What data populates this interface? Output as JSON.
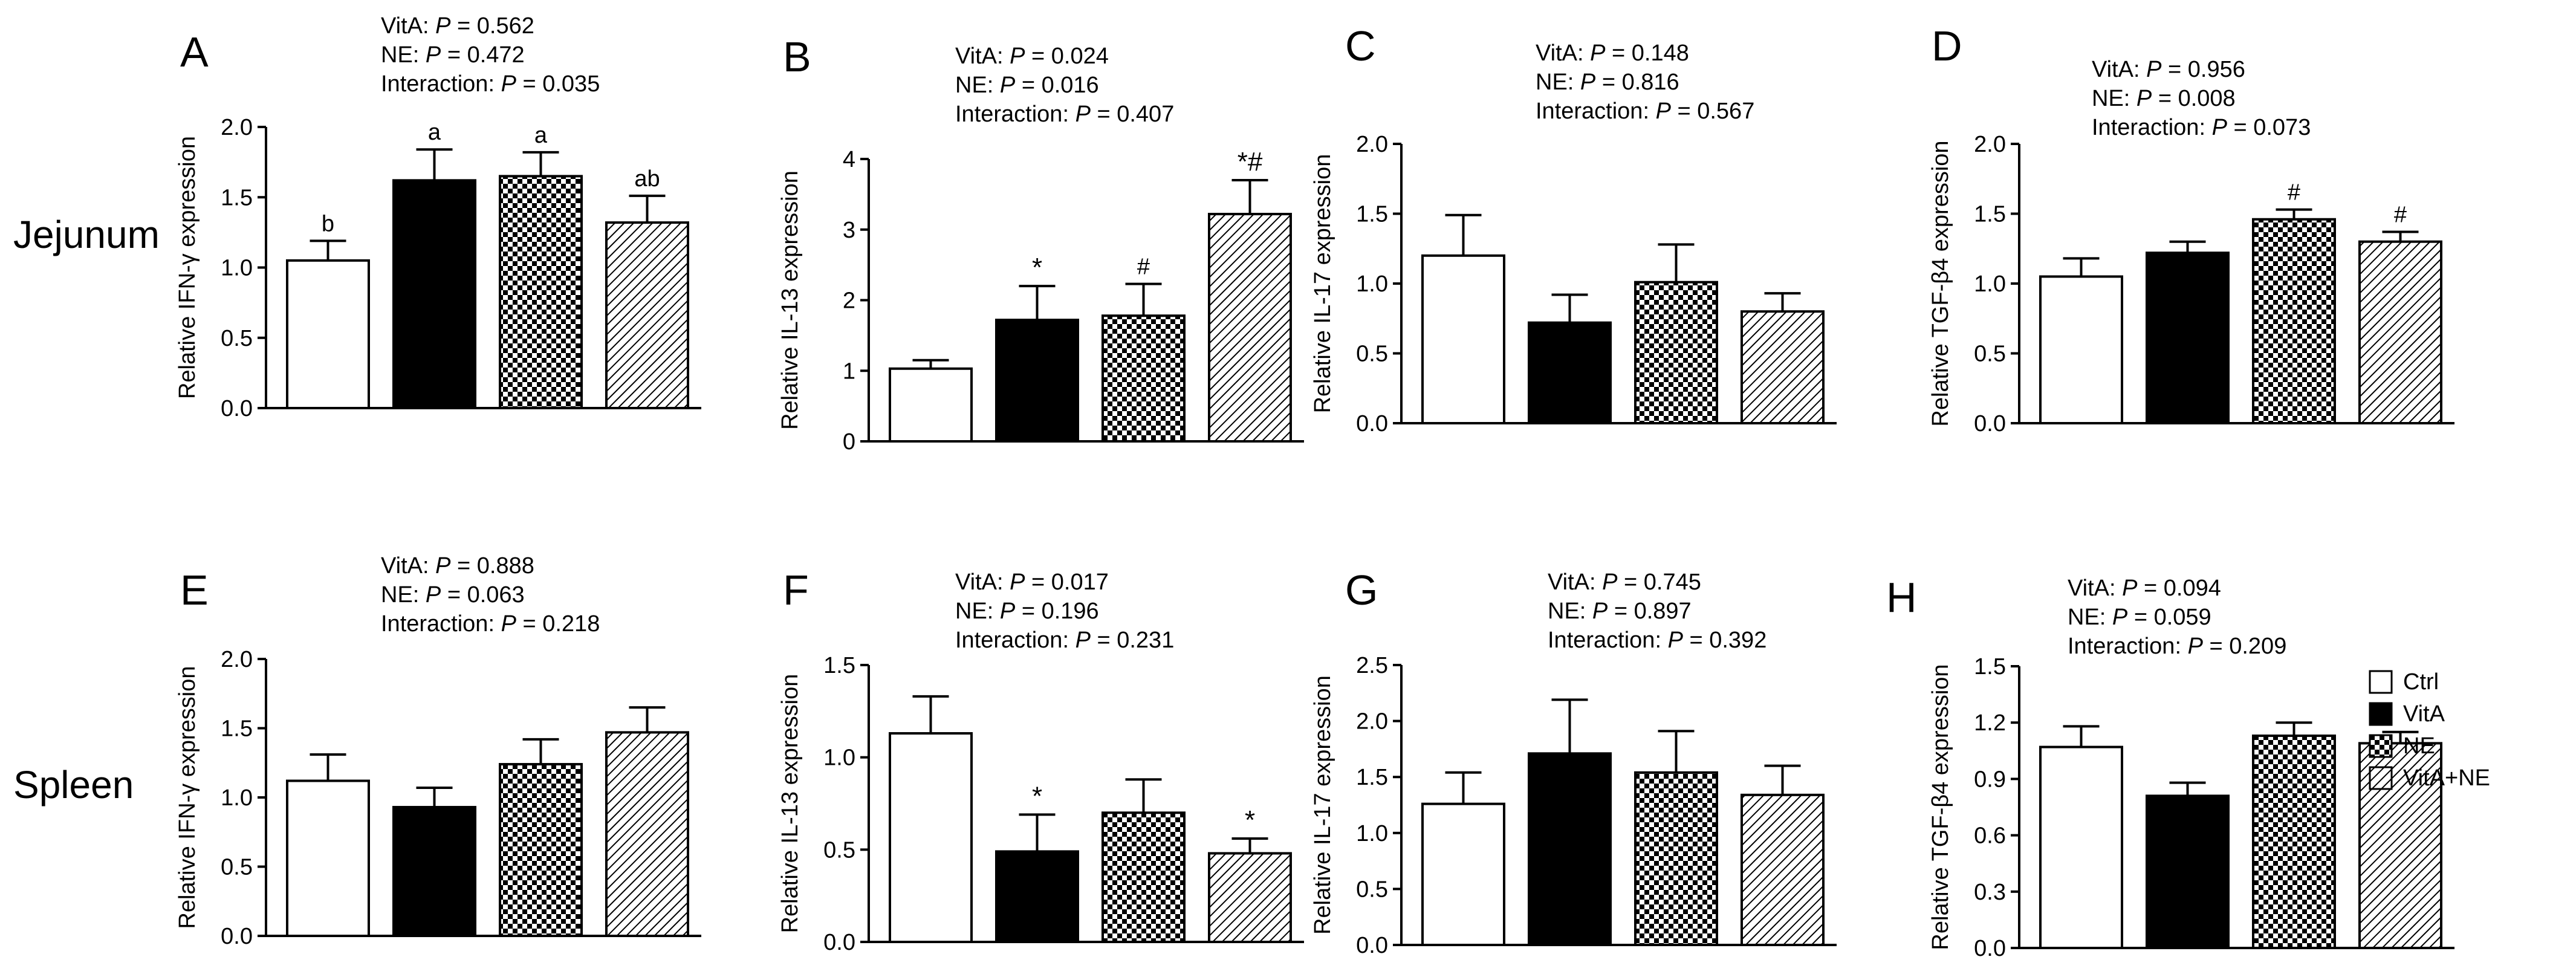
{
  "figure": {
    "row_labels": [
      "Jejunum",
      "Spleen"
    ],
    "legend": {
      "entries": [
        {
          "label": "Ctrl",
          "pattern": "white"
        },
        {
          "label": "VitA",
          "pattern": "black"
        },
        {
          "label": "NE",
          "pattern": "checker"
        },
        {
          "label": "VitA+NE",
          "pattern": "hatch"
        }
      ],
      "placement": "right of bottom row"
    }
  },
  "chart_data": [
    {
      "panel": "A",
      "type": "bar",
      "categories": [
        "Ctrl",
        "VitA",
        "NE",
        "VitA+NE"
      ],
      "values": [
        1.05,
        1.62,
        1.65,
        1.32
      ],
      "errors": [
        0.14,
        0.22,
        0.17,
        0.19
      ],
      "marks": [
        "b",
        "a",
        "a",
        "ab"
      ],
      "ylabel": "Relative IFN-γ expression",
      "ylim": [
        0,
        2.0
      ],
      "yticks": [
        "0.0",
        "0.5",
        "1.0",
        "1.5",
        "2.0"
      ],
      "stats": [
        [
          "VitA: ",
          "P",
          " = 0.562"
        ],
        [
          "NE: ",
          "P",
          " = 0.472"
        ],
        [
          "Interaction: ",
          "P",
          " = 0.035"
        ]
      ]
    },
    {
      "panel": "B",
      "type": "bar",
      "categories": [
        "Ctrl",
        "VitA",
        "NE",
        "VitA+NE"
      ],
      "values": [
        1.03,
        1.72,
        1.78,
        3.22
      ],
      "errors": [
        0.12,
        0.48,
        0.45,
        0.48
      ],
      "marks": [
        "",
        "*",
        "#",
        "*#"
      ],
      "ylabel": "Relative IL-13 expression",
      "ylim": [
        0,
        4
      ],
      "yticks": [
        "0",
        "1",
        "2",
        "3",
        "4"
      ],
      "stats": [
        [
          "VitA: ",
          "P",
          " = 0.024"
        ],
        [
          "NE: ",
          "P",
          " = 0.016"
        ],
        [
          "Interaction: ",
          "P",
          " = 0.407"
        ]
      ]
    },
    {
      "panel": "C",
      "type": "bar",
      "categories": [
        "Ctrl",
        "VitA",
        "NE",
        "VitA+NE"
      ],
      "values": [
        1.2,
        0.72,
        1.01,
        0.8
      ],
      "errors": [
        0.29,
        0.2,
        0.27,
        0.13
      ],
      "marks": [
        "",
        "",
        "",
        ""
      ],
      "ylabel": "Relative IL-17 expression",
      "ylim": [
        0,
        2.0
      ],
      "yticks": [
        "0.0",
        "0.5",
        "1.0",
        "1.5",
        "2.0"
      ],
      "stats": [
        [
          "VitA: ",
          "P",
          " = 0.148"
        ],
        [
          "NE: ",
          "P",
          " = 0.816"
        ],
        [
          "Interaction: ",
          "P",
          " = 0.567"
        ]
      ]
    },
    {
      "panel": "D",
      "type": "bar",
      "categories": [
        "Ctrl",
        "VitA",
        "NE",
        "VitA+NE"
      ],
      "values": [
        1.05,
        1.22,
        1.46,
        1.3
      ],
      "errors": [
        0.13,
        0.08,
        0.07,
        0.07
      ],
      "marks": [
        "",
        "",
        "#",
        "#"
      ],
      "ylabel": "Relative TGF-β4 expression",
      "ylim": [
        0,
        2.0
      ],
      "yticks": [
        "0.0",
        "0.5",
        "1.0",
        "1.5",
        "2.0"
      ],
      "stats": [
        [
          "VitA: ",
          "P",
          " = 0.956"
        ],
        [
          "NE: ",
          "P",
          " = 0.008"
        ],
        [
          "Interaction: ",
          "P",
          " = 0.073"
        ]
      ]
    },
    {
      "panel": "E",
      "type": "bar",
      "categories": [
        "Ctrl",
        "VitA",
        "NE",
        "VitA+NE"
      ],
      "values": [
        1.12,
        0.93,
        1.24,
        1.47
      ],
      "errors": [
        0.19,
        0.14,
        0.18,
        0.18
      ],
      "marks": [
        "",
        "",
        "",
        ""
      ],
      "ylabel": "Relative IFN-γ expression",
      "ylim": [
        0,
        2.0
      ],
      "yticks": [
        "0.0",
        "0.5",
        "1.0",
        "1.5",
        "2.0"
      ],
      "stats": [
        [
          "VitA: ",
          "P",
          " = 0.888"
        ],
        [
          "NE: ",
          "P",
          " = 0.063"
        ],
        [
          "Interaction: ",
          "P",
          " = 0.218"
        ]
      ]
    },
    {
      "panel": "F",
      "type": "bar",
      "categories": [
        "Ctrl",
        "VitA",
        "NE",
        "VitA+NE"
      ],
      "values": [
        1.13,
        0.49,
        0.7,
        0.48
      ],
      "errors": [
        0.2,
        0.2,
        0.18,
        0.08
      ],
      "marks": [
        "",
        "*",
        "",
        "*"
      ],
      "ylabel": "Relative IL-13 expression",
      "ylim": [
        0,
        1.5
      ],
      "yticks": [
        "0.0",
        "0.5",
        "1.0",
        "1.5"
      ],
      "stats": [
        [
          "VitA: ",
          "P",
          " = 0.017"
        ],
        [
          "NE: ",
          "P",
          " = 0.196"
        ],
        [
          "Interaction: ",
          "P",
          " = 0.231"
        ]
      ]
    },
    {
      "panel": "G",
      "type": "bar",
      "categories": [
        "Ctrl",
        "VitA",
        "NE",
        "VitA+NE"
      ],
      "values": [
        1.26,
        1.71,
        1.54,
        1.34
      ],
      "errors": [
        0.28,
        0.48,
        0.37,
        0.26
      ],
      "marks": [
        "",
        "",
        "",
        ""
      ],
      "ylabel": "Relative IL-17 expression",
      "ylim": [
        0,
        2.5
      ],
      "yticks": [
        "0.0",
        "0.5",
        "1.0",
        "1.5",
        "2.0",
        "2.5"
      ],
      "stats": [
        [
          "VitA: ",
          "P",
          " = 0.745"
        ],
        [
          "NE: ",
          "P",
          " = 0.897"
        ],
        [
          "Interaction: ",
          "P",
          " = 0.392"
        ]
      ]
    },
    {
      "panel": "H",
      "type": "bar",
      "categories": [
        "Ctrl",
        "VitA",
        "NE",
        "VitA+NE"
      ],
      "values": [
        1.07,
        0.81,
        1.13,
        1.09
      ],
      "errors": [
        0.11,
        0.07,
        0.07,
        0.06
      ],
      "marks": [
        "",
        "",
        "",
        ""
      ],
      "ylabel": "Relative TGF-β4 expression",
      "ylim": [
        0,
        1.5
      ],
      "yticks": [
        "0.0",
        "0.3",
        "0.6",
        "0.9",
        "1.2",
        "1.5"
      ],
      "stats": [
        [
          "VitA: ",
          "P",
          " = 0.094"
        ],
        [
          "NE: ",
          "P",
          " = 0.059"
        ],
        [
          "Interaction: ",
          "P",
          " = 0.209"
        ]
      ]
    }
  ]
}
